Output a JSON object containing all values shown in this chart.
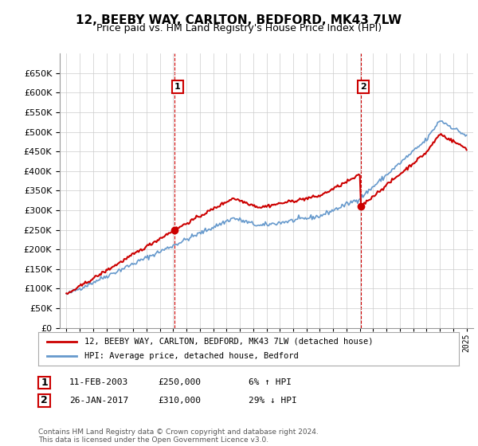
{
  "title": "12, BEEBY WAY, CARLTON, BEDFORD, MK43 7LW",
  "subtitle": "Price paid vs. HM Land Registry's House Price Index (HPI)",
  "legend_line1": "12, BEEBY WAY, CARLTON, BEDFORD, MK43 7LW (detached house)",
  "legend_line2": "HPI: Average price, detached house, Bedford",
  "annotation1_label": "1",
  "annotation1_date": "11-FEB-2003",
  "annotation1_price": "£250,000",
  "annotation1_hpi": "6% ↑ HPI",
  "annotation2_label": "2",
  "annotation2_date": "26-JAN-2017",
  "annotation2_price": "£310,000",
  "annotation2_hpi": "29% ↓ HPI",
  "copyright": "Contains HM Land Registry data © Crown copyright and database right 2024.\nThis data is licensed under the Open Government Licence v3.0.",
  "hpi_color": "#6699cc",
  "price_color": "#cc0000",
  "annotation_box_color": "#cc0000",
  "ylim": [
    0,
    700000
  ],
  "yticks": [
    0,
    50000,
    100000,
    150000,
    200000,
    250000,
    300000,
    350000,
    400000,
    450000,
    500000,
    550000,
    600000,
    650000
  ],
  "background_color": "#ffffff",
  "grid_color": "#cccccc"
}
